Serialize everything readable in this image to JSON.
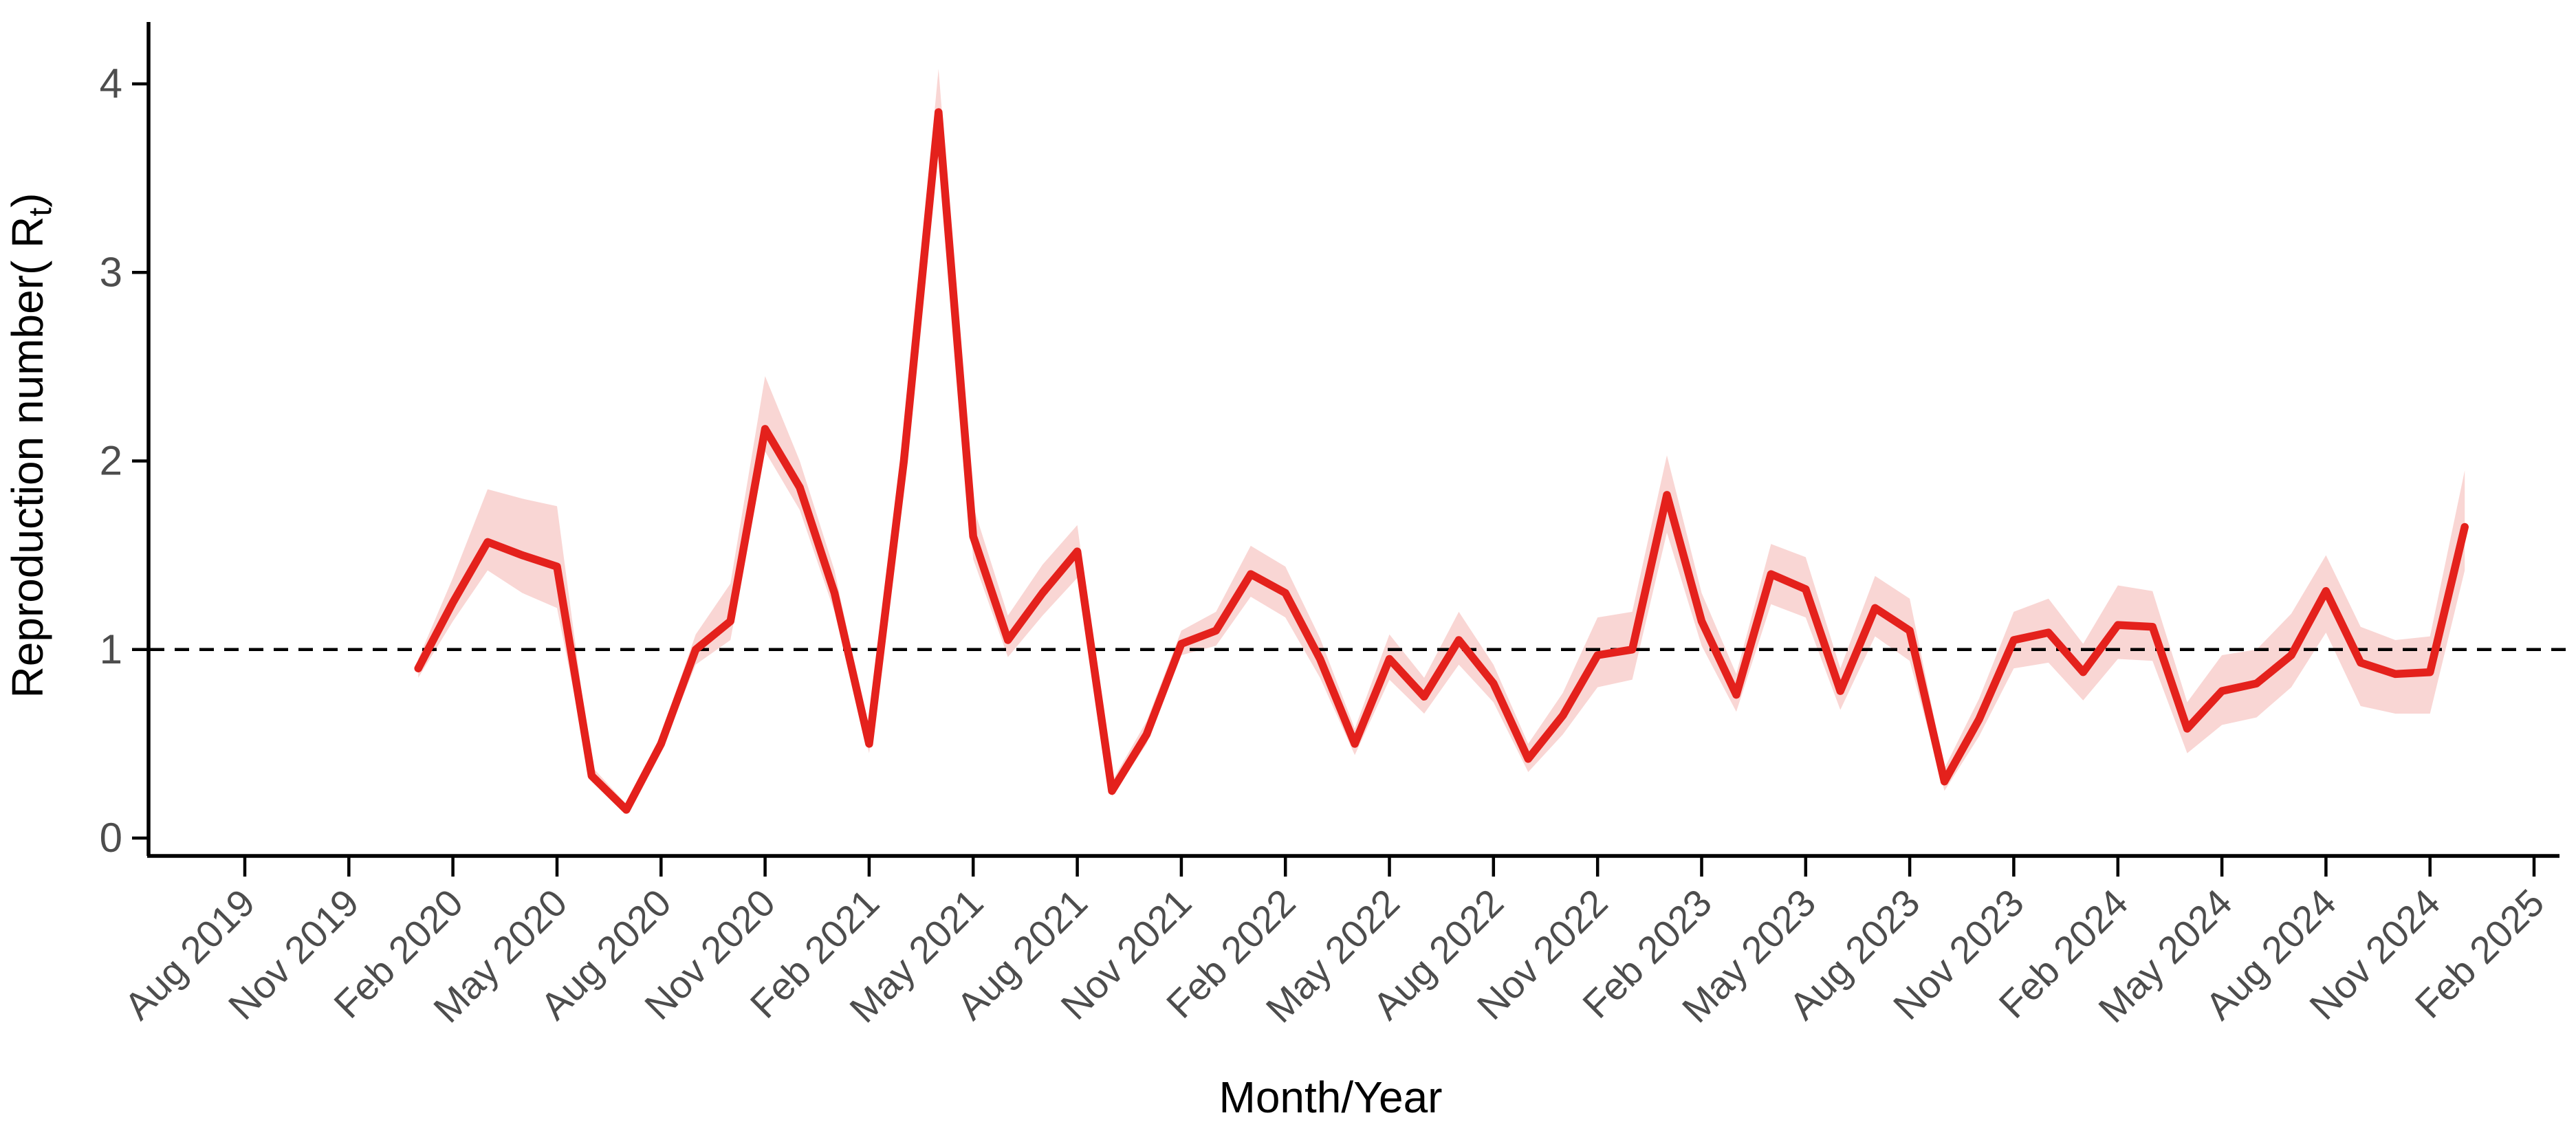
{
  "figure": {
    "xlabel": "Month/Year",
    "ylabel_main": "Reproduction number( R",
    "ylabel_sub": "t",
    "ylabel_close": ")"
  },
  "colors": {
    "line": "#e4211c",
    "ribbon": "#f9d6d4",
    "reference_line": "#000000",
    "axis": "#000000",
    "tick_label": "#4d4d4d",
    "axis_title": "#000000",
    "background": "#ffffff"
  },
  "chart_data": {
    "type": "line",
    "title": "",
    "xlabel": "Month/Year",
    "ylabel": "Reproduction number( Rt)",
    "ylim": [
      0,
      4.3
    ],
    "yticks": [
      0,
      1,
      2,
      3,
      4
    ],
    "grid": false,
    "legend": false,
    "reference_line_y": 1,
    "x_tick_labels": [
      "Aug 2019",
      "Nov 2019",
      "Feb 2020",
      "May 2020",
      "Aug 2020",
      "Nov 2020",
      "Feb 2021",
      "May 2021",
      "Aug 2021",
      "Nov 2021",
      "Feb 2022",
      "May 2022",
      "Aug 2022",
      "Nov 2022",
      "Feb 2023",
      "May 2023",
      "Aug 2023",
      "Nov 2023",
      "Feb 2024",
      "May 2024",
      "Aug 2024",
      "Nov 2024",
      "Feb 2025"
    ],
    "x_months": [
      "Jan 2020",
      "Feb 2020",
      "Mar 2020",
      "Apr 2020",
      "May 2020",
      "Jun 2020",
      "Jul 2020",
      "Aug 2020",
      "Sep 2020",
      "Oct 2020",
      "Nov 2020",
      "Dec 2020",
      "Jan 2021",
      "Feb 2021",
      "Mar 2021",
      "Apr 2021",
      "May 2021",
      "Jun 2021",
      "Jul 2021",
      "Aug 2021",
      "Sep 2021",
      "Oct 2021",
      "Nov 2021",
      "Dec 2021",
      "Jan 2022",
      "Feb 2022",
      "Mar 2022",
      "Apr 2022",
      "May 2022",
      "Jun 2022",
      "Jul 2022",
      "Aug 2022",
      "Sep 2022",
      "Oct 2022",
      "Nov 2022",
      "Dec 2022",
      "Jan 2023",
      "Feb 2023",
      "Mar 2023",
      "Apr 2023",
      "May 2023",
      "Jun 2023",
      "Jul 2023",
      "Aug 2023",
      "Sep 2023",
      "Oct 2023",
      "Nov 2023",
      "Dec 2023",
      "Jan 2024",
      "Feb 2024",
      "Mar 2024",
      "Apr 2024",
      "May 2024",
      "Jun 2024",
      "Jul 2024",
      "Aug 2024",
      "Sep 2024",
      "Oct 2024",
      "Nov 2024",
      "Dec 2024"
    ],
    "series": [
      {
        "name": "Rt estimate",
        "values": [
          0.9,
          1.25,
          1.57,
          1.5,
          1.44,
          0.33,
          0.15,
          0.5,
          1.0,
          1.15,
          2.17,
          1.86,
          1.3,
          0.5,
          2.0,
          3.85,
          1.6,
          1.05,
          1.3,
          1.52,
          0.25,
          0.55,
          1.03,
          1.1,
          1.4,
          1.3,
          0.95,
          0.5,
          0.95,
          0.75,
          1.05,
          0.82,
          0.42,
          0.65,
          0.97,
          1.0,
          1.82,
          1.15,
          0.76,
          1.4,
          1.32,
          0.78,
          1.22,
          1.1,
          0.3,
          0.63,
          1.05,
          1.09,
          0.88,
          1.13,
          1.12,
          0.58,
          0.78,
          0.82,
          0.97,
          1.31,
          0.93,
          0.87,
          0.88,
          1.65
        ]
      },
      {
        "name": "CI lower",
        "values": [
          0.85,
          1.15,
          1.42,
          1.3,
          1.22,
          0.3,
          0.13,
          0.46,
          0.92,
          1.05,
          2.05,
          1.74,
          1.2,
          0.45,
          1.9,
          3.68,
          1.48,
          0.96,
          1.18,
          1.38,
          0.22,
          0.5,
          0.97,
          1.02,
          1.28,
          1.17,
          0.85,
          0.44,
          0.84,
          0.66,
          0.92,
          0.72,
          0.35,
          0.55,
          0.8,
          0.84,
          1.62,
          1.02,
          0.67,
          1.24,
          1.17,
          0.68,
          1.07,
          0.94,
          0.25,
          0.54,
          0.9,
          0.93,
          0.73,
          0.95,
          0.94,
          0.45,
          0.6,
          0.64,
          0.8,
          1.09,
          0.7,
          0.66,
          0.66,
          1.42
        ]
      },
      {
        "name": "CI upper",
        "values": [
          0.95,
          1.38,
          1.85,
          1.8,
          1.76,
          0.38,
          0.18,
          0.55,
          1.08,
          1.35,
          2.45,
          2.0,
          1.42,
          0.56,
          2.12,
          4.08,
          1.76,
          1.18,
          1.45,
          1.66,
          0.3,
          0.62,
          1.1,
          1.2,
          1.55,
          1.44,
          1.06,
          0.58,
          1.08,
          0.85,
          1.2,
          0.92,
          0.5,
          0.77,
          1.17,
          1.2,
          2.03,
          1.3,
          0.87,
          1.56,
          1.49,
          0.9,
          1.39,
          1.27,
          0.37,
          0.74,
          1.2,
          1.27,
          1.03,
          1.34,
          1.31,
          0.72,
          0.97,
          1.0,
          1.19,
          1.5,
          1.12,
          1.05,
          1.07,
          1.95
        ]
      }
    ]
  }
}
